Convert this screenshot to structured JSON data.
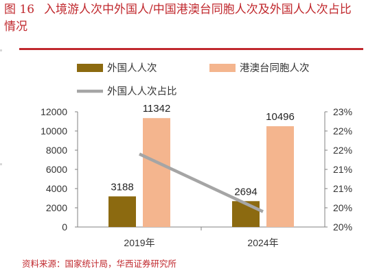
{
  "figure": {
    "number": "图 16",
    "title": "入境游人次中外国人/中国港澳台同胞人次及外国人人次占比情况"
  },
  "source": "资料来源：国家统计局，华西证券研究所",
  "colors": {
    "accent": "#c0282d",
    "series_foreign": "#8c6a10",
    "series_hmt": "#f4b58e",
    "series_share": "#a5a5a5"
  },
  "chart_data": {
    "type": "bar",
    "categories": [
      "2019年",
      "2024年"
    ],
    "series": [
      {
        "name": "外国人人次",
        "type": "bar",
        "axis": "left",
        "values": [
          3188,
          2694
        ],
        "labels": [
          "3188",
          "2694"
        ]
      },
      {
        "name": "港澳台同胞人次",
        "type": "bar",
        "axis": "left",
        "values": [
          11342,
          10496
        ],
        "labels": [
          "11342",
          "10496"
        ]
      },
      {
        "name": "外国人人次占比",
        "type": "line",
        "axis": "right",
        "values": [
          21.9,
          20.4
        ]
      }
    ],
    "ylim": [
      0,
      12000
    ],
    "yticks": [
      "0",
      "2000",
      "4000",
      "6000",
      "8000",
      "10000",
      "12000"
    ],
    "y2lim": [
      20,
      23
    ],
    "y2ticks": [
      "20%",
      "20%",
      "21%",
      "21%",
      "22%",
      "22%",
      "23%"
    ],
    "legend_position": "top",
    "grid": false
  }
}
